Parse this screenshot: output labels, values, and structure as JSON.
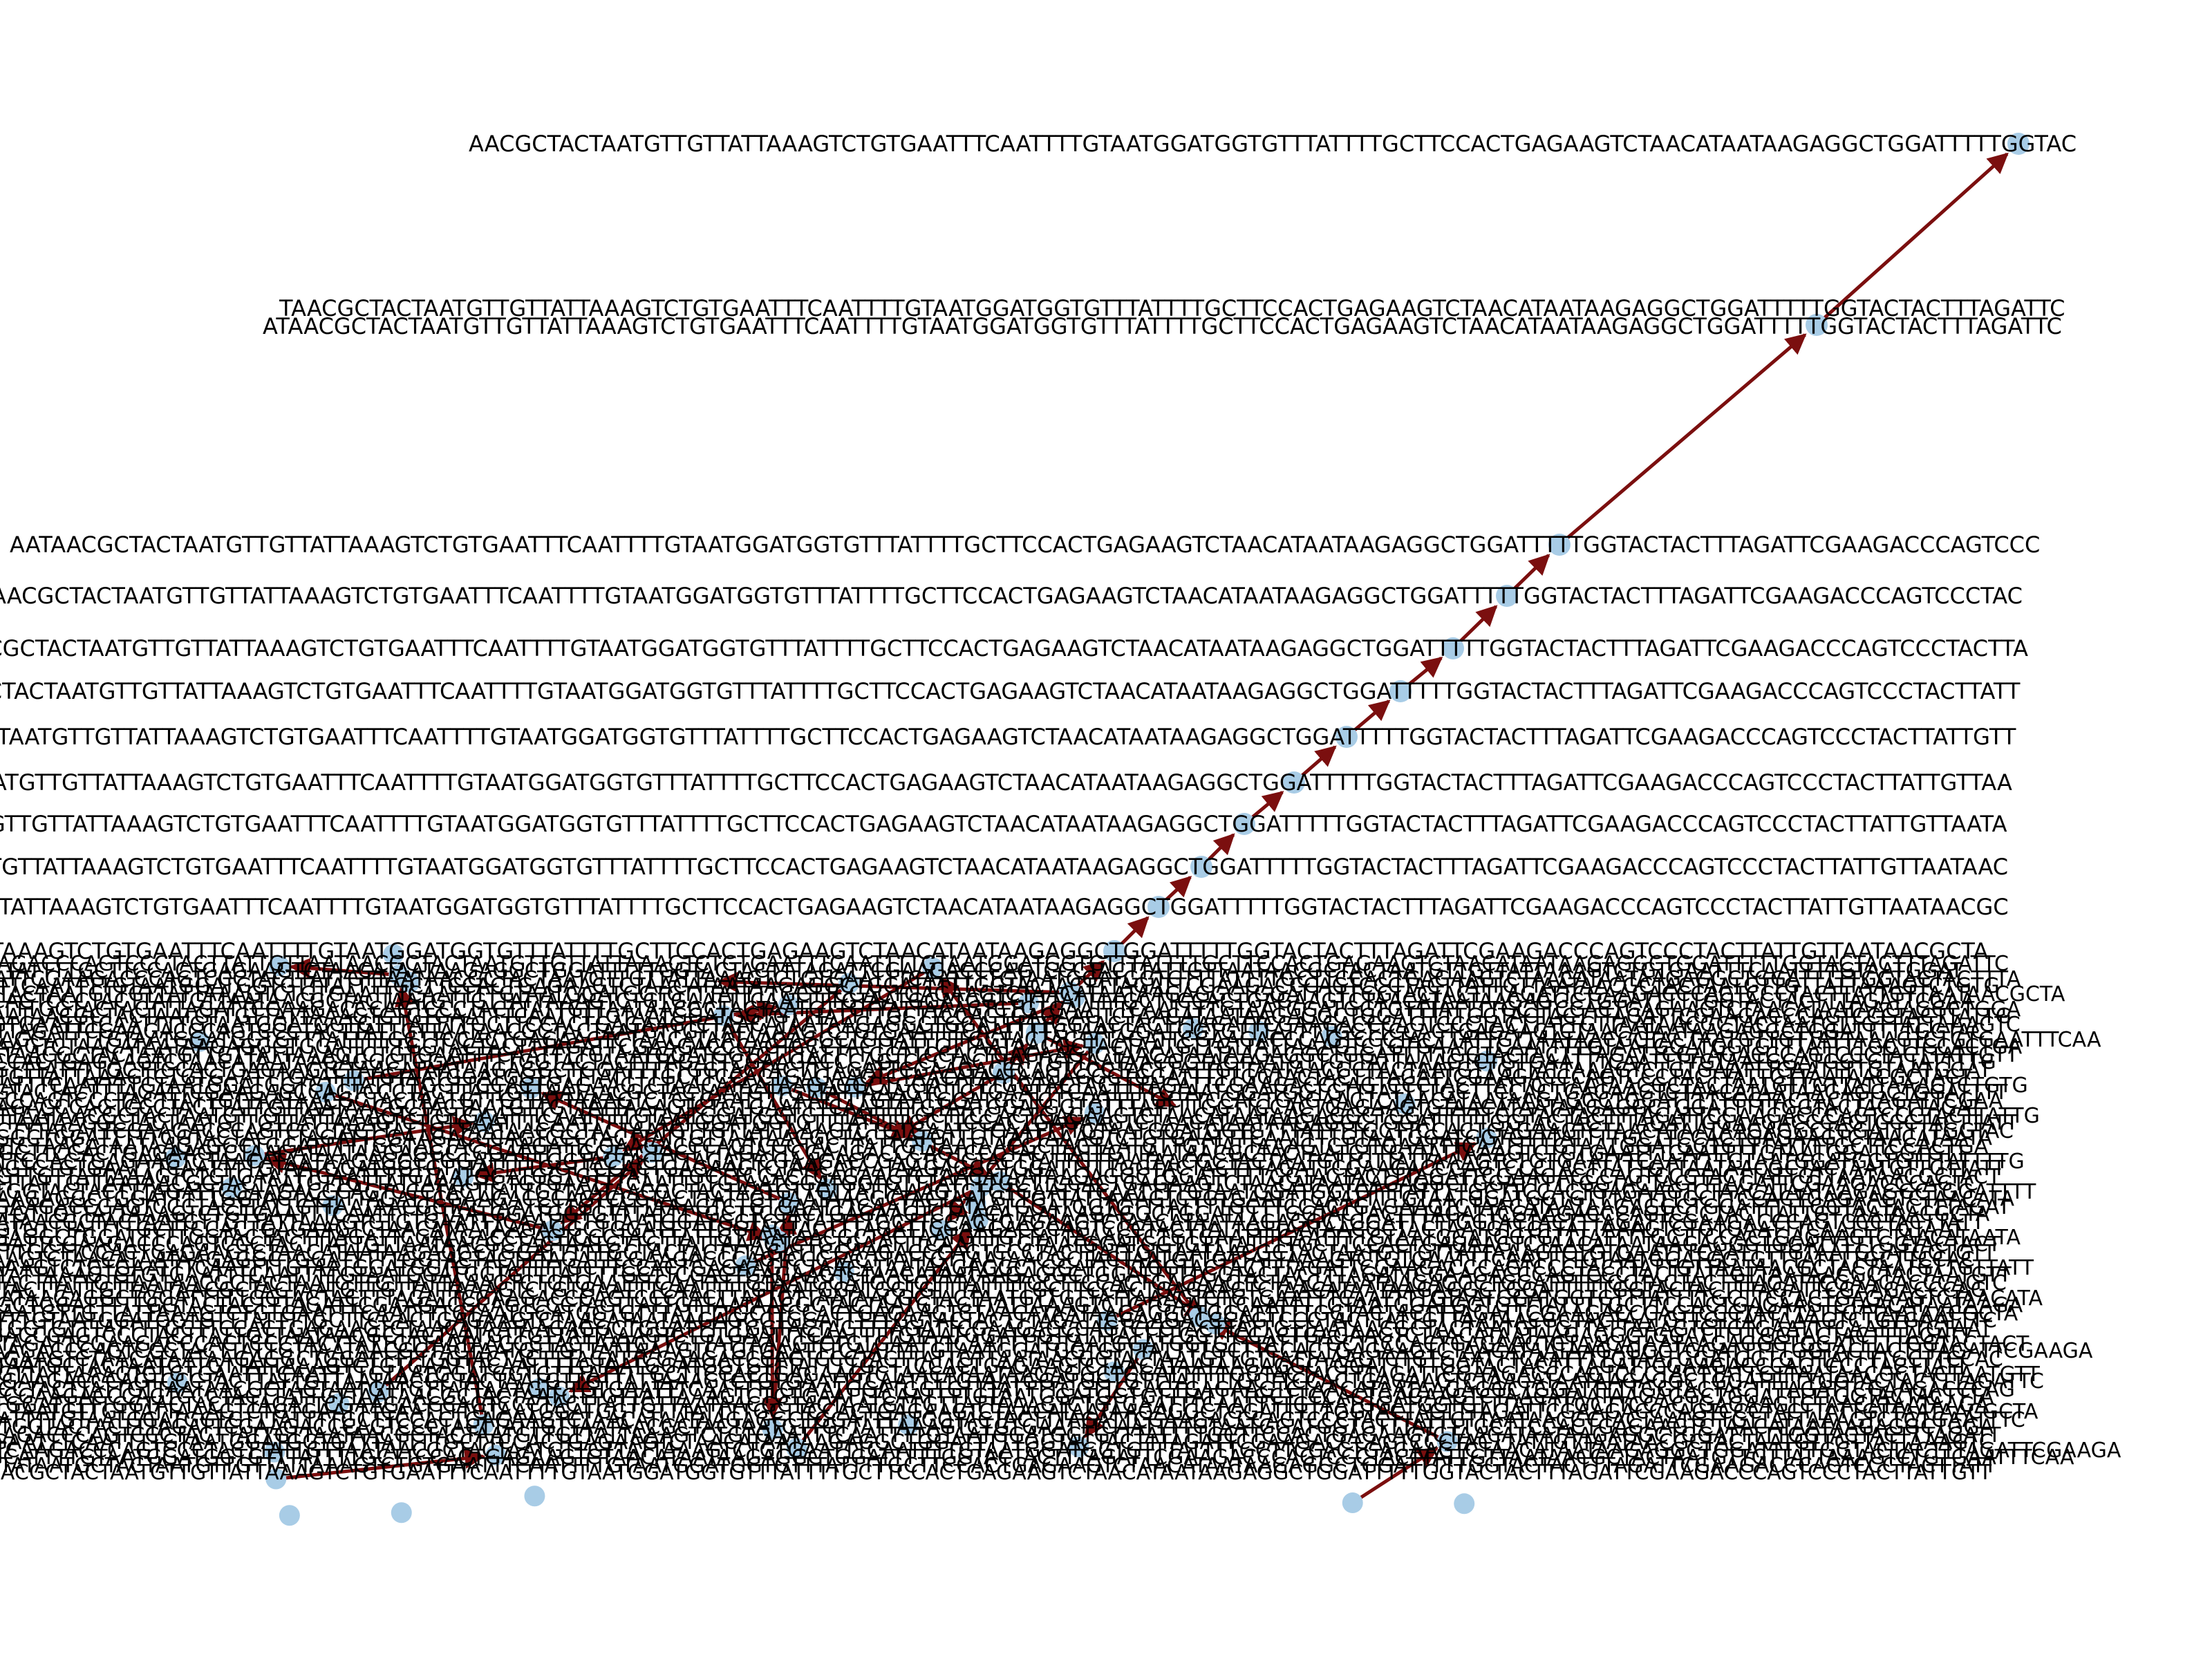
{
  "colors": {
    "node": "#a8cce6",
    "edge": "#7b0f0f",
    "label": "#000000",
    "background": "#ffffff"
  },
  "labels": [
    "AACGCTACTAATGTTGTTATTAAAGTCTGTGAATTTCAATTTTGTAATGGATGGTGTTTATTTTGCTTCCACTGAGAAGTCTAACATAATAAGAGGCTGGATTTTTGGTAC",
    "TAACGCTACTAATGTTGTTATTAAAGTCTGTGAATTTCAATTTTGTAATGGATGGTGTTTATTTTGCTTCCACTGAGAAGTCTAACATAATAAGAGGCTGGATTTTTGGTACTACTTTAGATTC",
    "ATAACGCTACTAATGTTGTTATTAAAGTCTGTGAATTTCAATTTTGTAATGGATGGTGTTTATTTTGCTTCCACTGAGAAGTCTAACATAATAAGAGGCTGGATTTTTGGTACTACTTTAGATTC",
    "AATAACGCTACTAATGTTGTTATTAAAGTCTGTGAATTTCAATTTTGTAATGGATGGTGTTTATTTTGCTTCCACTGAGAAGTCTAACATAATAAGAGGCTGGATTTTTGGTACTACTTTAGATTCGAAGACCCAGTCCC",
    "TAACGCTACTAATGTTGTTATTAAAGTCTGTGAATTTCAATTTTGTAATGGATGGTGTTTATTTTGCTTCCACTGAGAAGTCTAACATAATAAGAGGCTGGATTTTTGGTACTACTTTAGATTCGAAGACCCAGTCCCTAC",
    "ACGCTACTAATGTTGTTATTAAAGTCTGTGAATTTCAATTTTGTAATGGATGGTGTTTATTTTGCTTCCACTGAGAAGTCTAACATAATAAGAGGCTGGATTTTTGGTACTACTTTAGATTCGAAGACCCAGTCCCTACTTA",
    "GCTACTAATGTTGTTATTAAAGTCTGTGAATTTCAATTTTGTAATGGATGGTGTTTATTTTGCTTCCACTGAGAAGTCTAACATAATAAGAGGCTGGATTTTTGGTACTACTTTAGATTCGAAGACCCAGTCCCTACTTATT",
    "ACTAATGTTGTTATTAAAGTCTGTGAATTTCAATTTTGTAATGGATGGTGTTTATTTTGCTTCCACTGAGAAGTCTAACATAATAAGAGGCTGGATTTTTGGTACTACTTTAGATTCGAAGACCCAGTCCCTACTTATTGTT",
    "TAATGTTGTTATTAAAGTCTGTGAATTTCAATTTTGTAATGGATGGTGTTTATTTTGCTTCCACTGAGAAGTCTAACATAATAAGAGGCTGGATTTTTGGTACTACTTTAGATTCGAAGACCCAGTCCCTACTTATTGTTAA",
    "ATGTTGTTATTAAAGTCTGTGAATTTCAATTTTGTAATGGATGGTGTTTATTTTGCTTCCACTGAGAAGTCTAACATAATAAGAGGCTGGATTTTTGGTACTACTTTAGATTCGAAGACCCAGTCCCTACTTATTGTTAATA",
    "GTTGTTATTAAAGTCTGTGAATTTCAATTTTGTAATGGATGGTGTTTATTTTGCTTCCACTGAGAAGTCTAACATAATAAGAGGCTGGATTTTTGGTACTACTTTAGATTCGAAGACCCAGTCCCTACTTATTGTTAATAAC",
    "TGTTATTAAAGTCTGTGAATTTCAATTTTGTAATGGATGGTGTTTATTTTGCTTCCACTGAGAAGTCTAACATAATAAGAGGCTGGATTTTTGGTACTACTTTAGATTCGAAGACCCAGTCCCTACTTATTGTTAATAACGC",
    "TATTAAAGTCTGTGAATTTCAATTTTGTAATGGATGGTGTTTATTTTGCTTCCACTGAGAAGTCTAACATAATAAGAGGCTGGATTTTTGGTACTACTTTAGATTCGAAGACCCAGTCCCTACTTATTGTTAATAACGCTA"
  ],
  "dense_labels": [
    "TTGAAGACCCAGTCCCTACTTATTGTTAATAACGCTACTAATGTTGTTATTAAAGTCTGTGAATTTCAATTTTGTAATGGATGGTGTTTATTTTGCTTCCACTGAGAAGTCTAACATAATAAGAGGCTGGATTTTTGGTACTACTTTAGATTC",
    "GATTCGAAGACCCAGTCCCTACTTATTGTTAATAACGCTACTAATGTTGTTATTAAAGTCTGTGAATTTCAATTTTGTAATGGATGGTGTTTATTTTGCTTCCACTGAGAAGTCTAACATAATAAGAGGCTGGATTTTTGGTACTACTTTA",
    "CGCTACTAATGTTGTTATTAAAGTCTGTGAATTTCAATTTTGTAATGGATGGTGTTTATTTTGCTTCCACTGAGAAGTCTAACATAATAAGAGGCTGGATTTTTGGTACTACTTTAGATTCGAAGACCCAGTCCCTACTTATTGTTAATAACGCTA",
    "TTTTGGTACTACTTTAGATTCGAAGACCCAGTCCCTACTTATTGTTAATAACGCTACTAATGTTGTTATTAAAGTCTGTGAATTTCAATTTTGTAATGGATGGTGTTTATTTTGCTTCCACTGAGAAGTCTAACATAATAAGAGGCTGGA",
    "CTGTGAATTTCAATTTTGTAATGGATGGTGTTTATTTTGCTTCCACTGAGAAGTCTAACATAATAAGAGGCTGGATTTTTGGTACTACTTTAGATTCGAAGACCCAGTCCCTACTTATTGTTAATAACGCTACTAATGTTGTTATTAAAGTC",
    "AGCATTTTGTAATGGATGGTGTTTATTTTGCTTCCACTGAGAAGTCTAACATAATAAGAGGCTGGATTTTTGGTACTACTTTAGATTCGAAGACCCAGTCCCTACTTATTGTTAATAACGCTACTAATGTTGTTATTAAAGTCTGTGAATTTCAA",
    "AATAACGCTACTAATGTTGTTATTAAAGTCTGTGAATTTCAATTTTGTAATGGATGGTGTTTATTTTGCTTCCACTGAGAAGTCTAACATAATAAGAGGCTGGATTTTTGGTACTACTTTAGATTCGAAGACCCAGTCCCTACTTATTGTT",
    "GGTGTTTATTTTGCTTCCACTGAGAAGTCTAACATAATAAGAGGCTGGATTTTTGGTACTACTTTAGATTCGAAGACCCAGTCCCTACTTATTGTTAATAACGCTACTAATGTTGTTATTAAAGTCTGTGAATTTCAATTTTGTAATGGAT",
    "AATTTCAATTTTGTAATGGATGGTGTTTATTTTGCTTCCACTGAGAAGTCTAACATAATAAGAGGCTGGATTTTTGGTACTACTTTAGATTCGAAGACCCAGTCCCTACTTATTGTTAATAACGCTACTAATGTTGTTATTAAAGTCTGTG",
    "GACCCAGTCCCTACTTATTGTTAATAACGCTACTAATGTTGTTATTAAAGTCTGTGAATTTCAATTTTGTAATGGATGGTGTTTATTTTGCTTCCACTGAGAAGTCTAACATAATAAGAGGCTGGATTTTTGGTACTACTTTAGATTCGAA",
    "TTAATAACGCTACTAATGTTGTTATTAAAGTCTGTGAATTTCAATTTTGTAATGGATGGTGTTTATTTTGCTTCCACTGAGAAGTCTAACATAATAAGAGGCTGGATTTTTGGTACTACTTTAGATTCGAAGACCCAGTCCCTACTTATTG",
    "TACTTTAGATTCGAAGACCCAGTCCCTACTTATTGTTAATAACGCTACTAATGTTGTTATTAAAGTCTGTGAATTTCAATTTTGTAATGGATGGTGTTTATTTTGCTTCCACTGAGAAGTCTAACATAATAAGAGGCTGGATTTTTGGTAC",
    "GAAGTCTAACATAATAAGAGGCTGGATTTTTGGTACTACTTTAGATTCGAAGACCCAGTCCCTACTTATTGTTAATAACGCTACTAATGTTGTTATTAAAGTCTGTGAATTTCAATTTTGTAATGGATGGTGTTTATTTTGCTTCCACTGA",
    "CTTCCACTGAGAAGTCTAACATAATAAGAGGCTGGATTTTTGGTACTACTTTAGATTCGAAGACCCAGTCCCTACTTATTGTTAATAACGCTACTAATGTTGTTATTAAAGTCTGTGAATTTCAATTTTGTAATGGATGGTGTTTATTTTG",
    "AATGTTGTTATTAAAGTCTGTGAATTTCAATTTTGTAATGGATGGTGTTTATTTTGCTTCCACTGAGAAGTCTAACATAATAAGAGGCTGGATTTTTGGTACTACTTTAGATTCGAAGACCCAGTCCCTACTTATTGTTAATAACGCTACT",
    "TGGTACTACTTTAGATTCGAAGACCCAGTCCCTACTTATTGTTAATAACGCTACTAATGTTGTTATTAAAGTCTGTGAATTTCAATTTTGTAATGGATGGTGTTTATTTTGCTTCCACTGAGAAGTCTAACATAATAAGAGGCTGGATTTT",
    "TCGAAGACCCAGTCCCTACTTATTGTTAATAACGCTACTAATGTTGTTATTAAAGTCTGTGAATTTCAATTTTGTAATGGATGGTGTTTATTTTGCTTCCACTGAGAAGTCTAACATAATAAGAGGCTGGATTTTTGGTACTACTTTAGAT",
    "GTTAATAACGCTACTAATGTTGTTATTAAAGTCTGTGAATTTCAATTTTGTAATGGATGGTGTTTATTTTGCTTCCACTGAGAAGTCTAACATAATAAGAGGCTGGATTTTTGGTACTACTTTAGATTCGAAGACCCAGTCCCTACTTATT",
    "AGAGGCTGGATTTTTGGTACTACTTTAGATTCGAAGACCCAGTCCCTACTTATTGTTAATAACGCTACTAATGTTGTTATTAAAGTCTGTGAATTTCAATTTTGTAATGGATGGTGTTTATTTTGCTTCCACTGAGAAGTCTAACATAATA",
    "TATTTTGCTTCCACTGAGAAGTCTAACATAATAAGAGGCTGGATTTTTGGTACTACTTTAGATTCGAAGACCCAGTCCCTACTTATTGTTAATAACGCTACTAATGTTGTTATTAAAGTCTGTGAATTTCAATTTTGTAATGGATGGTGTT",
    "AAAGTCTGTGAATTTCAATTTTGTAATGGATGGTGTTTATTTTGCTTCCACTGAGAAGTCTAACATAATAAGAGGCTGGATTTTTGGTACTACTTTAGATTCGAAGACCCAGTCCCTACTTATTGTTAATAACGCTACTAATGTTGTTATT",
    "CCTACTTATTGTTAATAACGCTACTAATGTTGTTATTAAAGTCTGTGAATTTCAATTTTGTAATGGATGGTGTTTATTTTGCTTCCACTGAGAAGTCTAACATAATAAGAGGCTGGATTTTTGGTACTACTTTAGATTCGAAGACCCAGTC",
    "ATAAGAGGCTGGATTTTTGGTACTACTTTAGATTCGAAGACCCAGTCCCTACTTATTGTTAATAACGCTACTAATGTTGTTATTAAAGTCTGTGAATTTCAATTTTGTAATGGATGGTGTTTATTTTGCTTCCACTGAGAAGTCTAACATA",
    "CTAATGTTGTTATTAAAGTCTGTGAATTTCAATTTTGTAATGGATGGTGTTTATTTTGCTTCCACTGAGAAGTCTAACATAATAAGAGGCTGGATTTTTGGTACTACTTTAGATTCGAAGACCCAGTCCCTACTTATTGTTAATAACGCTA",
    "GGATGGTGTTTATTTTGCTTCCACTGAGAAGTCTAACATAATAAGAGGCTGGATTTTTGGTACTACTTTAGATTCGAAGACCCAGTCCCTACTTATTGTTAATAACGCTACTAATGTTGTTATTAAAGTCTGTGAATTTCAATTTTGTAAT",
    "TTAGATTCGAAGACCCAGTCCCTACTTATTGTTAATAACGCTACTAATGTTGTTATTAAAGTCTGTGAATTTCAATTTTGTAATGGATGGTGTTTATTTTGCTTCCACTGAGAAGTCTAACATAATAAGAGGCTGGATTTTTGGTACTACT",
    "TGAGAAGTCTAACATAATAAGAGGCTGGATTTTTGGTACTACTTTAGATTCGAAGACCCAGTCCCTACTTATTGTTAATAACGCTACTAATGTTGTTATTAAAGTCTGTGAATTTCAATTTTGTAATGGATGGTGTTTATTTTGCTTCCAC",
    "GTTATTAAAGTCTGTGAATTTCAATTTTGTAATGGATGGTGTTTATTTTGCTTCCACTGAGAAGTCTAACATAATAAGAGGCTGGATTTTTGGTACTACTTTAGATTCGAAGACCCAGTCCCTACTTATTGTTAATAACGCTACTAATGTT",
    "TCCCTACTTATTGTTAATAACGCTACTAATGTTGTTATTAAAGTCTGTGAATTTCAATTTTGTAATGGATGGTGTTTATTTTGCTTCCACTGAGAAGTCTAACATAATAAGAGGCTGGATTTTTGGTACTACTTTAGATTCGAAGACCCAG",
    "GGCTGGATTTTTGGTACTACTTTAGATTCGAAGACCCAGTCCCTACTTATTGTTAATAACGCTACTAATGTTGTTATTAAAGTCTGTGAATTTCAATTTTGTAATGGATGGTGTTTATTTTGCTTCCACTGAGAAGTCTAACATAATAAGA",
    "AATTTTGTAATGGATGGTGTTTATTTTGCTTCCACTGAGAAGTCTAACATAATAAGAGGCTGGATTTTTGGTACTACTTTAGATTCGAAGACCCAGTCCCTACTTATTGTTAATAACGCTACTAATGTTGTTATTAAAGTCTGTGAATTTC",
    "CGAAGACCCAGTCCCTACTTATTGTTAATAACGCTACTAATGTTGTTATTAAAGTCTGTGAATTTCAATTTTGTAATGGATGGTGTTTATTTTGCTTCCACTGAGAAGTCTAACATAATAAGAGGCTGGATTTTTGGTACTACTTTAGATT",
    "TCAAGACCCAGTCCCTACTTATTGTTAATAACGCTACTAATGTTGTTATTAAAGTCTGTGAATTTCAATTTTGTAATGGATGGTGTTTATTTTGCTTCCACTGAGAAGTCTAACATAATAAGAGGCTGGATTTTTGGTACTACTTTAGATTCGAAGA",
    "GGTATAATGCTACTAATGTTGTTATTAAAGTCTGTGAATTTCAATTTTGTAATGGATGGTGTTTATTTTGCTTCCACTGAGAAGTCTAACATAATAAGAGGCTGGATTTTTGGTACTACTTTAGATTCGAAGACCCAGTCCCTACTTATT"
  ]
}
